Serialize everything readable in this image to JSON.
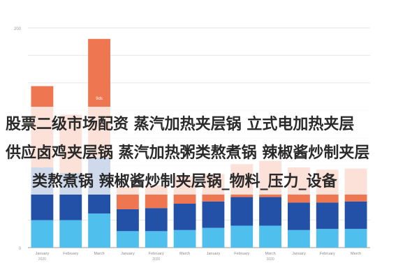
{
  "title": {
    "lines": [
      "股票二级市场配资 蒸汽加热夹层锅 立式电加热夹层",
      "供应卤鸡夹层锅 蒸汽加热粥类熬煮锅 辣椒酱炒制夹层",
      "类熬煮锅 辣椒酱炒制夹层锅_物料_压力_设备"
    ]
  },
  "chart_data": {
    "type": "bar",
    "stacked": true,
    "categories": [
      "January",
      "February",
      "March",
      "January",
      "February",
      "March",
      "January",
      "February",
      "March",
      "January",
      "February",
      "March"
    ],
    "groups": [
      "2020",
      "",
      "",
      "",
      "2020",
      "",
      "",
      "",
      "2020",
      "",
      "",
      ""
    ],
    "ylim": [
      0,
      200
    ],
    "yticks": [
      "0",
      "",
      "",
      "",
      "",
      "",
      "",
      "",
      "200"
    ],
    "series": [
      {
        "name": "",
        "color": "#4fc0ee",
        "values": [
          25,
          25,
          31,
          15,
          15,
          16,
          18,
          20,
          20,
          16,
          17,
          17
        ]
      },
      {
        "name": "",
        "color": "#2451a8",
        "values": [
          48,
          43,
          51,
          20,
          21,
          24,
          24,
          26,
          26,
          25,
          24,
          25
        ]
      },
      {
        "name": "",
        "color": "#ee7650",
        "values": [
          74,
          53,
          108,
          20,
          21,
          25,
          25,
          30,
          33,
          32,
          30,
          30
        ]
      }
    ],
    "data_labels": [
      [
        "",
        "",
        "",
        "",
        "",
        "",
        "",
        "",
        "",
        "",
        "",
        ""
      ],
      [
        "",
        "",
        "",
        "",
        "",
        "",
        "",
        "",
        "",
        "",
        "",
        ""
      ],
      [
        "",
        "",
        "9ds",
        "",
        "",
        "",
        "",
        "",
        "",
        "",
        "",
        ""
      ]
    ],
    "legend_position": "right",
    "grid": true
  },
  "colors": {
    "text": "#2a2a2a",
    "grid": "#e6e6e6",
    "axis": "#9a9a9a"
  }
}
